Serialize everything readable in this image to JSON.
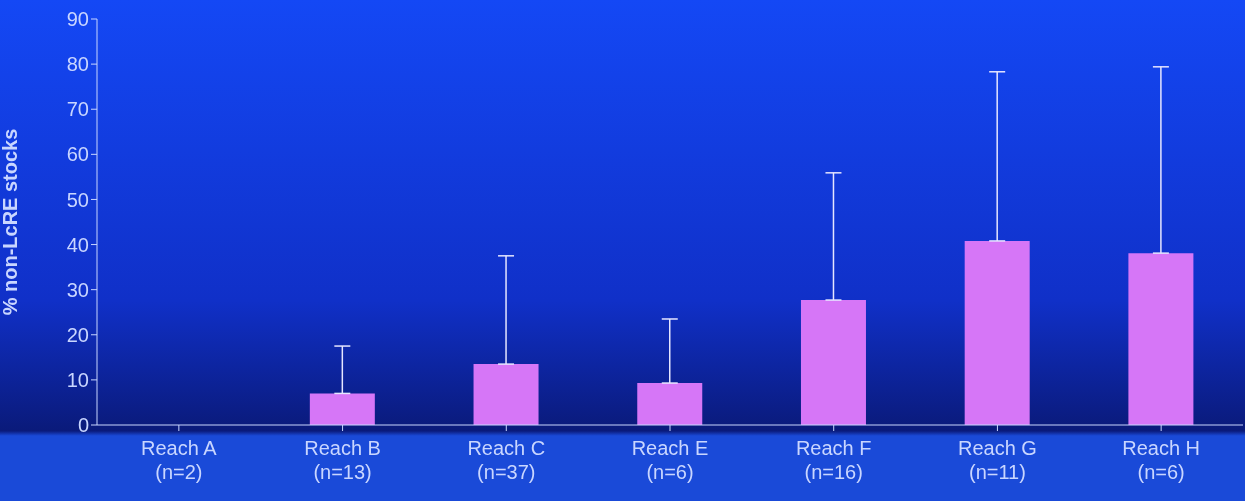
{
  "chart_data": {
    "type": "bar",
    "ylabel": "% non-LcRE stocks",
    "categories": [
      "Reach A\n(n=2)",
      "Reach B\n(n=13)",
      "Reach C\n(n=37)",
      "Reach E\n(n=6)",
      "Reach F\n(n=16)",
      "Reach G\n(n=11)",
      "Reach H\n(n=6)"
    ],
    "values": [
      0,
      7,
      13.5,
      9.3,
      27.7,
      40.8,
      38.1
    ],
    "errors": [
      null,
      [
        7,
        17.5
      ],
      [
        13.5,
        37.5
      ],
      [
        9.3,
        23.5
      ],
      [
        27.7,
        55.9
      ],
      [
        40.8,
        78.3
      ],
      [
        38.1,
        79.4
      ]
    ],
    "color": "#d676f7",
    "ylim": [
      0,
      90
    ],
    "yticks": [
      0,
      10,
      20,
      30,
      40,
      50,
      60,
      70,
      80,
      90
    ],
    "grid": false,
    "legend": false
  }
}
